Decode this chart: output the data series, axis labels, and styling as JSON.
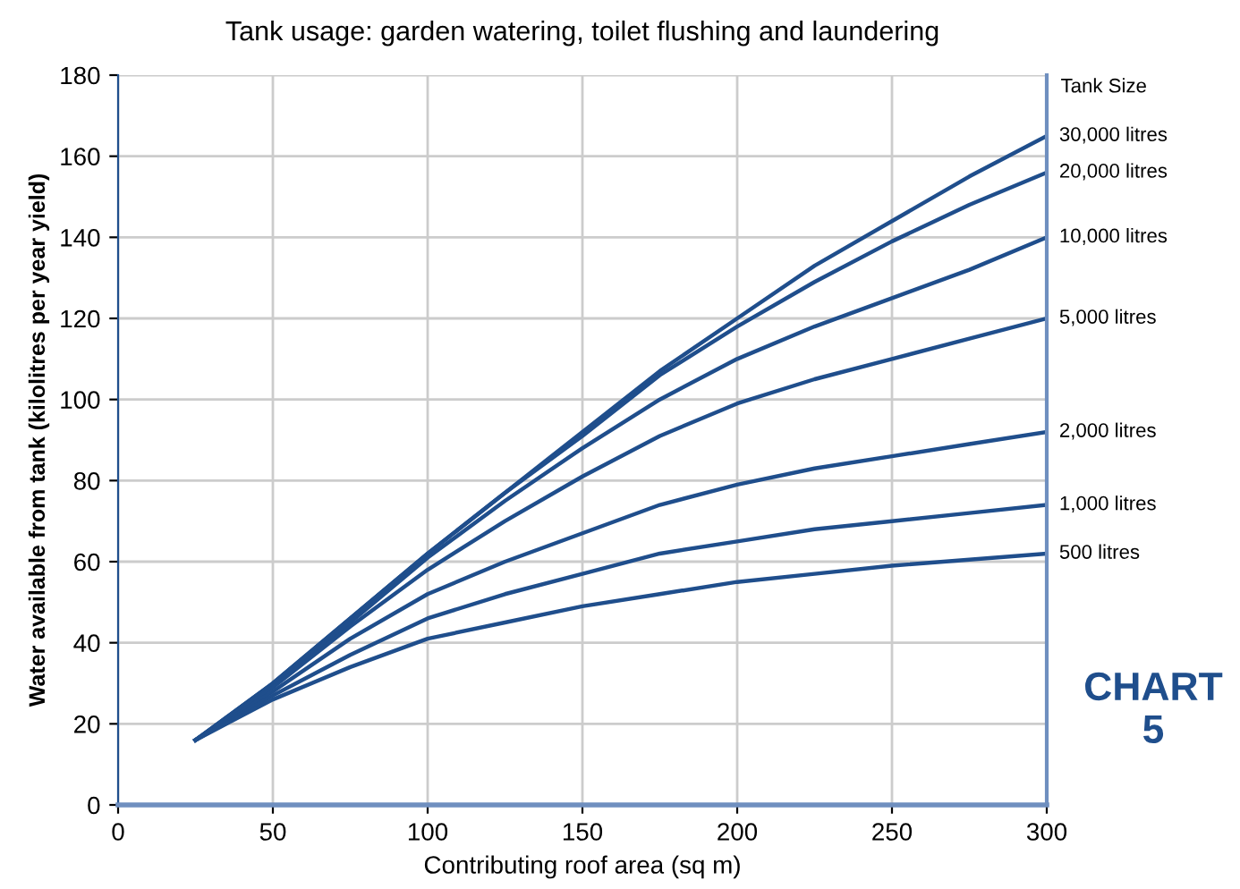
{
  "chart_data": {
    "type": "line",
    "title": "Tank usage: garden watering, toilet flushing and laundering",
    "xlabel": "Contributing roof area (sq m)",
    "ylabel": "Water available from tank (kilolitres per year yield)",
    "legend_title": "Tank Size",
    "annotations": [
      "CHART 5"
    ],
    "x": [
      25,
      50,
      75,
      100,
      125,
      150,
      175,
      200,
      225,
      250,
      275,
      300
    ],
    "series": [
      {
        "name": "30,000 litres",
        "color": "#1f4e8c",
        "values": [
          16,
          30,
          46,
          62,
          77,
          92,
          107,
          120,
          133,
          144,
          155,
          165
        ]
      },
      {
        "name": "20,000 litres",
        "color": "#1f4e8c",
        "values": [
          16,
          30,
          46,
          62,
          77,
          91,
          106,
          118,
          129,
          139,
          148,
          156
        ]
      },
      {
        "name": "10,000 litres",
        "color": "#1f4e8c",
        "values": [
          16,
          29.5,
          45,
          61,
          75,
          88,
          100,
          110,
          118,
          125,
          132,
          140
        ]
      },
      {
        "name": "5,000 litres",
        "color": "#1f4e8c",
        "values": [
          16,
          29,
          44,
          58,
          70,
          81,
          91,
          99,
          105,
          110,
          115,
          120
        ]
      },
      {
        "name": "2,000 litres",
        "color": "#1f4e8c",
        "values": [
          16,
          28,
          41,
          52,
          60,
          67,
          74,
          79,
          83,
          86,
          89,
          92
        ]
      },
      {
        "name": "1,000 litres",
        "color": "#1f4e8c",
        "values": [
          16,
          27,
          37,
          46,
          52,
          57,
          62,
          65,
          68,
          70,
          72,
          74
        ]
      },
      {
        "name": "500 litres",
        "color": "#1f4e8c",
        "values": [
          16,
          26,
          34,
          41,
          45,
          49,
          52,
          55,
          57,
          59,
          60.5,
          62
        ]
      }
    ],
    "xlim": [
      0,
      300
    ],
    "ylim": [
      0,
      180
    ],
    "xticks": [
      0,
      50,
      100,
      150,
      200,
      250,
      300
    ],
    "yticks": [
      0,
      20,
      40,
      60,
      80,
      100,
      120,
      140,
      160,
      180
    ],
    "grid": true,
    "legend": "right",
    "marker": "none",
    "line_style": "solid"
  }
}
